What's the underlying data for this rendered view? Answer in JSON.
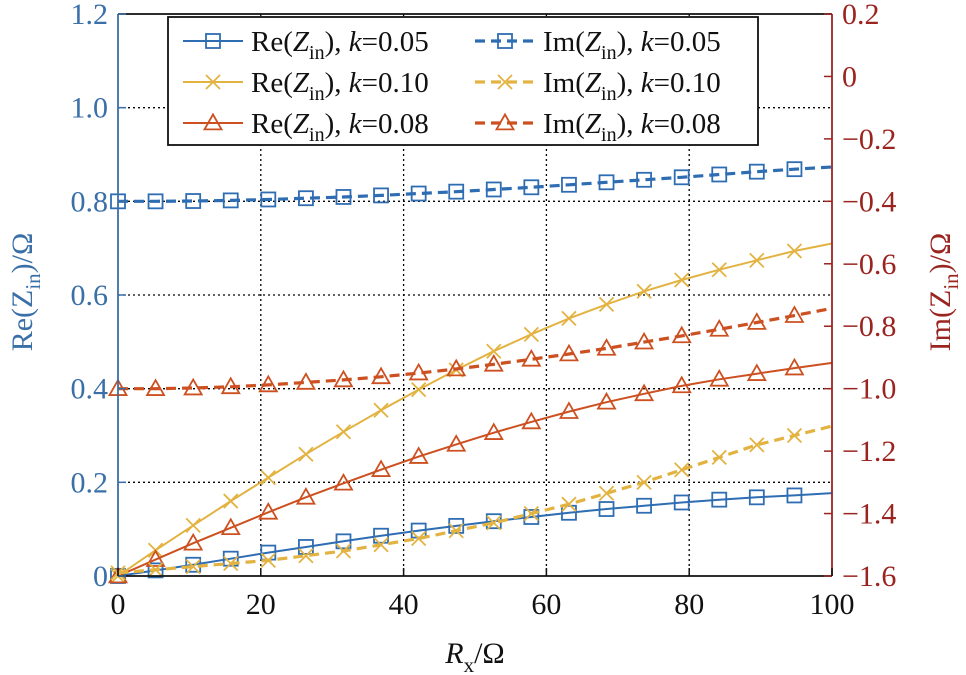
{
  "chart_data": {
    "type": "line",
    "x_label_main": "R",
    "x_label_sub": "x",
    "x_label_unit": "/Ω",
    "y_left_label": {
      "main": "Re(Z",
      "sub": "in",
      "tail": ")/Ω"
    },
    "y_right_label": {
      "main": "Im(Z",
      "sub": "in",
      "tail": ")/Ω"
    },
    "xlim": [
      0,
      100
    ],
    "ylim_left": [
      0,
      1.2
    ],
    "ylim_right": [
      -1.6,
      0.2
    ],
    "x_ticks": [
      0,
      20,
      40,
      60,
      80,
      100
    ],
    "x_tick_labels": [
      "0",
      "20",
      "40",
      "60",
      "80",
      "100"
    ],
    "y_left_ticks": [
      0,
      0.2,
      0.4,
      0.6,
      0.8,
      1.0,
      1.2
    ],
    "y_left_tick_labels": [
      "0",
      "0.2",
      "0.4",
      "0.6",
      "0.8",
      "1.0",
      "1.2"
    ],
    "y_right_ticks": [
      -1.6,
      -1.4,
      -1.2,
      -1.0,
      -0.8,
      -0.6,
      -0.4,
      -0.2,
      0,
      0.2
    ],
    "y_right_tick_labels": [
      "−1.6",
      "−1.4",
      "−1.2",
      "−1.0",
      "−0.8",
      "−0.6",
      "−0.4",
      "−0.2",
      "0",
      "0.2"
    ],
    "grid": true,
    "legend_position": "top",
    "colors": {
      "blue": "#2f6db3",
      "yellow": "#e3b341",
      "orange": "#cc5020",
      "left_axis": "#3a6fa8",
      "right_axis": "#9a2420"
    },
    "series": [
      {
        "name": "Re(Zin), k=0.05",
        "legend": {
          "part": "Re",
          "k": "0.05"
        },
        "axis": "left",
        "color": "blue",
        "marker": "square",
        "dash": false,
        "x": [
          0,
          5.26,
          10.53,
          15.79,
          21.05,
          26.32,
          31.58,
          36.84,
          42.11,
          47.37,
          52.63,
          57.89,
          63.16,
          68.42,
          73.68,
          78.95,
          84.21,
          89.47,
          94.74,
          100
        ],
        "y": [
          0,
          0.012,
          0.024,
          0.037,
          0.05,
          0.062,
          0.074,
          0.086,
          0.097,
          0.107,
          0.117,
          0.126,
          0.135,
          0.143,
          0.15,
          0.157,
          0.163,
          0.168,
          0.172,
          0.177
        ]
      },
      {
        "name": "Re(Zin), k=0.10",
        "legend": {
          "part": "Re",
          "k": "0.10"
        },
        "axis": "left",
        "color": "yellow",
        "marker": "x",
        "dash": false,
        "x": [
          0,
          5.26,
          10.53,
          15.79,
          21.05,
          26.32,
          31.58,
          36.84,
          42.11,
          47.37,
          52.63,
          57.89,
          63.16,
          68.42,
          73.68,
          78.95,
          84.21,
          89.47,
          94.74,
          100
        ],
        "y": [
          0,
          0.055,
          0.108,
          0.16,
          0.21,
          0.26,
          0.308,
          0.354,
          0.398,
          0.44,
          0.48,
          0.516,
          0.55,
          0.58,
          0.608,
          0.632,
          0.654,
          0.674,
          0.694,
          0.71
        ]
      },
      {
        "name": "Re(Zin), k=0.08",
        "legend": {
          "part": "Re",
          "k": "0.08"
        },
        "axis": "left",
        "color": "orange",
        "marker": "triangle",
        "dash": false,
        "x": [
          0,
          5.26,
          10.53,
          15.79,
          21.05,
          26.32,
          31.58,
          36.84,
          42.11,
          47.37,
          52.63,
          57.89,
          63.16,
          68.42,
          73.68,
          78.95,
          84.21,
          89.47,
          94.74,
          100
        ],
        "y": [
          0,
          0.035,
          0.07,
          0.103,
          0.136,
          0.168,
          0.198,
          0.227,
          0.255,
          0.281,
          0.306,
          0.329,
          0.351,
          0.371,
          0.389,
          0.406,
          0.42,
          0.432,
          0.444,
          0.455
        ]
      },
      {
        "name": "Im(Zin), k=0.05",
        "legend": {
          "part": "Im",
          "k": "0.05"
        },
        "axis": "right",
        "color": "blue",
        "marker": "square",
        "dash": true,
        "x": [
          0,
          5.26,
          10.53,
          15.79,
          21.05,
          26.32,
          31.58,
          36.84,
          42.11,
          47.37,
          52.63,
          57.89,
          63.16,
          68.42,
          73.68,
          78.95,
          84.21,
          89.47,
          94.74,
          100
        ],
        "y": [
          -0.4,
          -0.4,
          -0.399,
          -0.397,
          -0.394,
          -0.39,
          -0.386,
          -0.381,
          -0.375,
          -0.369,
          -0.362,
          -0.355,
          -0.347,
          -0.339,
          -0.331,
          -0.323,
          -0.314,
          -0.305,
          -0.297,
          -0.29
        ]
      },
      {
        "name": "Im(Zin), k=0.10",
        "legend": {
          "part": "Im",
          "k": "0.10"
        },
        "axis": "right",
        "color": "yellow",
        "marker": "x",
        "dash": true,
        "x": [
          0,
          5.26,
          10.53,
          15.79,
          21.05,
          26.32,
          31.58,
          36.84,
          42.11,
          47.37,
          52.63,
          57.89,
          63.16,
          68.42,
          73.68,
          78.95,
          84.21,
          89.47,
          94.74,
          100
        ],
        "y": [
          -1.59,
          -1.58,
          -1.57,
          -1.56,
          -1.55,
          -1.535,
          -1.52,
          -1.5,
          -1.48,
          -1.455,
          -1.43,
          -1.4,
          -1.37,
          -1.335,
          -1.3,
          -1.26,
          -1.22,
          -1.18,
          -1.15,
          -1.12
        ]
      },
      {
        "name": "Im(Zin), k=0.08",
        "legend": {
          "part": "Im",
          "k": "0.08"
        },
        "axis": "right",
        "color": "orange",
        "marker": "triangle",
        "dash": true,
        "x": [
          0,
          5.26,
          10.53,
          15.79,
          21.05,
          26.32,
          31.58,
          36.84,
          42.11,
          47.37,
          52.63,
          57.89,
          63.16,
          68.42,
          73.68,
          78.95,
          84.21,
          89.47,
          94.74,
          100
        ],
        "y": [
          -1.0,
          -1.0,
          -0.998,
          -0.994,
          -0.988,
          -0.98,
          -0.972,
          -0.962,
          -0.95,
          -0.937,
          -0.922,
          -0.906,
          -0.889,
          -0.871,
          -0.851,
          -0.831,
          -0.81,
          -0.788,
          -0.766,
          -0.743
        ]
      }
    ]
  }
}
